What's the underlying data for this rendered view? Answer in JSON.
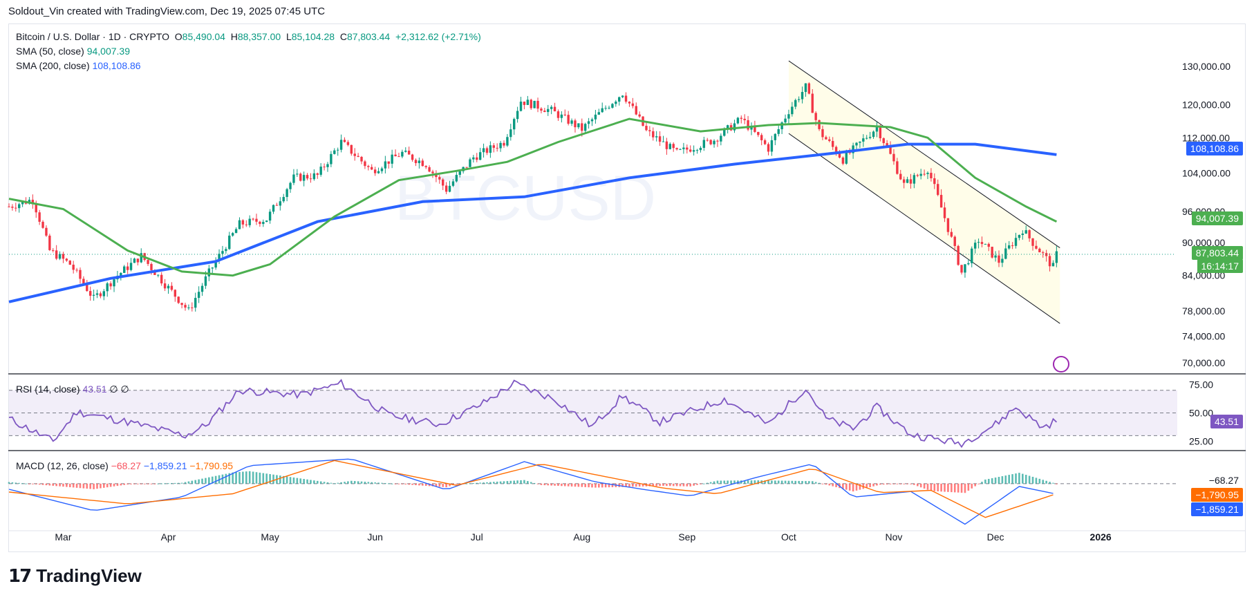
{
  "caption": "Soldout_Vin created with TradingView.com, Dec 19, 2025 07:45 UTC",
  "brand": "TradingView",
  "watermark": "BTCUSD",
  "legend": {
    "symbol": "Bitcoin / U.S. Dollar · 1D · CRYPTO",
    "open_label": "O",
    "open": "85,490.04",
    "high_label": "H",
    "high": "88,357.00",
    "low_label": "L",
    "low": "85,104.28",
    "close_label": "C",
    "close": "87,803.44",
    "change": "+2,312.62 (+2.71%)",
    "sma50_label": "SMA (50, close)",
    "sma50": "94,007.39",
    "sma200_label": "SMA (200, close)",
    "sma200": "108,108.86",
    "rsi_label": "RSI (14, close)",
    "rsi": "43.51",
    "rsi_extra": "∅ ∅",
    "macd_label": "MACD (12, 26, close)",
    "macd_hist": "−68.27",
    "macd_line": "−1,859.21",
    "macd_signal": "−1,790.95"
  },
  "tags": {
    "sma200": "108,108.86",
    "sma50": "94,007.39",
    "price": "87,803.44",
    "countdown": "16:14:17",
    "rsi": "43.51",
    "macd_hist": "−68.27",
    "macd_signal": "−1,790.95",
    "macd_line": "−1,859.21"
  },
  "colors": {
    "up": "#089981",
    "down": "#f23645",
    "sma50": "#4caf50",
    "sma200": "#2962ff",
    "rsi": "#7e57c2",
    "macd": "#2962ff",
    "signal": "#ff6d00",
    "channel_fill": "#fffde7"
  },
  "chart_data": {
    "type": "candlestick",
    "title": "Bitcoin / U.S. Dollar · 1D · CRYPTO",
    "x_ticks": [
      "Mar",
      "Apr",
      "May",
      "Jun",
      "Jul",
      "Aug",
      "Sep",
      "Oct",
      "Nov",
      "Dec",
      "2026"
    ],
    "y_ticks": [
      "130,000.00",
      "120,000.00",
      "112,000.00",
      "104,000.00",
      "96,000.00",
      "90,000.00",
      "84,000.00",
      "78,000.00",
      "74,000.00",
      "70,000.00"
    ],
    "y_log_scale": true,
    "ylim": [
      69000,
      134000
    ],
    "rsi_ticks": [
      "75.00",
      "50.00",
      "25.00"
    ],
    "rsi_ylim": [
      18,
      82
    ],
    "close_series_points": [
      [
        "2025-02-13",
        97000
      ],
      [
        "2025-02-20",
        98500
      ],
      [
        "2025-02-25",
        88500
      ],
      [
        "2025-03-03",
        86000
      ],
      [
        "2025-03-10",
        80000
      ],
      [
        "2025-03-17",
        84000
      ],
      [
        "2025-03-24",
        87500
      ],
      [
        "2025-03-31",
        82500
      ],
      [
        "2025-04-07",
        78000
      ],
      [
        "2025-04-13",
        84500
      ],
      [
        "2025-04-22",
        93500
      ],
      [
        "2025-04-30",
        94500
      ],
      [
        "2025-05-08",
        103000
      ],
      [
        "2025-05-15",
        103500
      ],
      [
        "2025-05-22",
        111000
      ],
      [
        "2025-05-31",
        104500
      ],
      [
        "2025-06-09",
        108500
      ],
      [
        "2025-06-16",
        106000
      ],
      [
        "2025-06-22",
        100500
      ],
      [
        "2025-06-30",
        107500
      ],
      [
        "2025-07-09",
        111000
      ],
      [
        "2025-07-14",
        121000
      ],
      [
        "2025-07-23",
        118500
      ],
      [
        "2025-08-01",
        114000
      ],
      [
        "2025-08-13",
        123000
      ],
      [
        "2025-08-20",
        113500
      ],
      [
        "2025-08-29",
        108500
      ],
      [
        "2025-09-09",
        111500
      ],
      [
        "2025-09-17",
        116500
      ],
      [
        "2025-09-25",
        109500
      ],
      [
        "2025-10-01",
        118500
      ],
      [
        "2025-10-06",
        124500
      ],
      [
        "2025-10-10",
        113500
      ],
      [
        "2025-10-17",
        107000
      ],
      [
        "2025-10-27",
        114500
      ],
      [
        "2025-11-04",
        101500
      ],
      [
        "2025-11-11",
        105000
      ],
      [
        "2025-11-21",
        84500
      ],
      [
        "2025-11-26",
        90500
      ],
      [
        "2025-12-02",
        86500
      ],
      [
        "2025-12-09",
        92500
      ],
      [
        "2025-12-12",
        90000
      ],
      [
        "2025-12-18",
        85500
      ],
      [
        "2025-12-19",
        87803
      ]
    ],
    "sma50_points": [
      [
        "2025-02-13",
        98600
      ],
      [
        "2025-03-01",
        96500
      ],
      [
        "2025-03-20",
        88500
      ],
      [
        "2025-04-05",
        84700
      ],
      [
        "2025-04-20",
        84000
      ],
      [
        "2025-05-01",
        86000
      ],
      [
        "2025-05-20",
        95000
      ],
      [
        "2025-06-08",
        102500
      ],
      [
        "2025-06-25",
        104500
      ],
      [
        "2025-07-10",
        106500
      ],
      [
        "2025-07-25",
        111000
      ],
      [
        "2025-08-15",
        116500
      ],
      [
        "2025-09-05",
        113500
      ],
      [
        "2025-09-25",
        115000
      ],
      [
        "2025-10-10",
        115500
      ],
      [
        "2025-10-31",
        114500
      ],
      [
        "2025-11-11",
        112000
      ],
      [
        "2025-11-25",
        103000
      ],
      [
        "2025-12-10",
        97000
      ],
      [
        "2025-12-19",
        94007
      ]
    ],
    "sma200_points": [
      [
        "2025-02-13",
        79500
      ],
      [
        "2025-03-15",
        83500
      ],
      [
        "2025-04-15",
        86500
      ],
      [
        "2025-05-15",
        94000
      ],
      [
        "2025-06-15",
        98000
      ],
      [
        "2025-07-15",
        99000
      ],
      [
        "2025-08-15",
        103000
      ],
      [
        "2025-09-15",
        106000
      ],
      [
        "2025-10-15",
        108500
      ],
      [
        "2025-11-05",
        110500
      ],
      [
        "2025-11-25",
        110500
      ],
      [
        "2025-12-19",
        108109
      ]
    ],
    "channel": {
      "upper": [
        [
          "2025-10-01",
          131500
        ],
        [
          "2025-12-20",
          89000
        ]
      ],
      "lower": [
        [
          "2025-10-01",
          113000
        ],
        [
          "2025-12-20",
          76000
        ]
      ]
    },
    "rsi_points": [
      [
        "2025-02-13",
        45
      ],
      [
        "2025-02-26",
        25
      ],
      [
        "2025-03-05",
        51
      ],
      [
        "2025-03-20",
        42
      ],
      [
        "2025-04-06",
        30
      ],
      [
        "2025-04-12",
        39
      ],
      [
        "2025-04-22",
        70
      ],
      [
        "2025-05-10",
        66
      ],
      [
        "2025-05-22",
        76
      ],
      [
        "2025-06-05",
        48
      ],
      [
        "2025-06-20",
        40
      ],
      [
        "2025-07-02",
        57
      ],
      [
        "2025-07-12",
        76
      ],
      [
        "2025-07-24",
        62
      ],
      [
        "2025-08-04",
        38
      ],
      [
        "2025-08-13",
        65
      ],
      [
        "2025-08-24",
        42
      ],
      [
        "2025-09-12",
        62
      ],
      [
        "2025-09-25",
        40
      ],
      [
        "2025-10-06",
        72
      ],
      [
        "2025-10-12",
        45
      ],
      [
        "2025-10-20",
        36
      ],
      [
        "2025-10-27",
        55
      ],
      [
        "2025-11-06",
        31
      ],
      [
        "2025-11-21",
        23
      ],
      [
        "2025-12-01",
        40
      ],
      [
        "2025-12-07",
        55
      ],
      [
        "2025-12-15",
        37
      ],
      [
        "2025-12-19",
        43.51
      ]
    ],
    "macd_points": [
      [
        "2025-02-13",
        -1000
      ],
      [
        "2025-03-10",
        -4800
      ],
      [
        "2025-04-05",
        -2400
      ],
      [
        "2025-04-25",
        3200
      ],
      [
        "2025-05-25",
        4400
      ],
      [
        "2025-06-22",
        -1100
      ],
      [
        "2025-07-15",
        3900
      ],
      [
        "2025-08-05",
        300
      ],
      [
        "2025-08-20",
        -1100
      ],
      [
        "2025-09-02",
        -2200
      ],
      [
        "2025-09-22",
        1200
      ],
      [
        "2025-10-08",
        3500
      ],
      [
        "2025-10-20",
        -2400
      ],
      [
        "2025-11-06",
        -1400
      ],
      [
        "2025-11-22",
        -7200
      ],
      [
        "2025-12-08",
        -500
      ],
      [
        "2025-12-19",
        -1859.21
      ]
    ],
    "signal_points": [
      [
        "2025-02-13",
        -1500
      ],
      [
        "2025-03-20",
        -3600
      ],
      [
        "2025-04-20",
        -1800
      ],
      [
        "2025-05-20",
        4100
      ],
      [
        "2025-06-25",
        -300
      ],
      [
        "2025-07-20",
        3500
      ],
      [
        "2025-08-25",
        -800
      ],
      [
        "2025-09-10",
        -1800
      ],
      [
        "2025-10-08",
        2700
      ],
      [
        "2025-10-28",
        -1600
      ],
      [
        "2025-11-12",
        -1200
      ],
      [
        "2025-11-28",
        -6000
      ],
      [
        "2025-12-19",
        -1790.95
      ]
    ],
    "histogram_note_last": -68.27
  }
}
